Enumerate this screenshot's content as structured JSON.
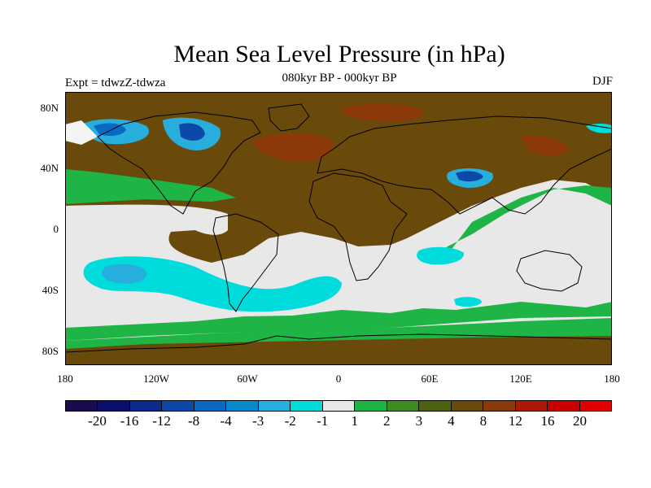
{
  "title": "Mean Sea Level Pressure (in hPa)",
  "subtitle": "080kyr BP - 000kyr BP",
  "experiment": "Expt = tdwzZ-tdwza",
  "season": "DJF",
  "chart_data": {
    "type": "heatmap",
    "projection": "equirectangular",
    "lon_range": [
      -180,
      180
    ],
    "lat_range": [
      -90,
      90
    ],
    "y_ticks": [
      "80N",
      "40N",
      "0",
      "40S",
      "80S"
    ],
    "y_tick_values": [
      80,
      40,
      0,
      -40,
      -80
    ],
    "x_ticks": [
      "180",
      "120W",
      "60W",
      "0",
      "60E",
      "120E",
      "180"
    ],
    "x_tick_values": [
      -180,
      -120,
      -60,
      0,
      60,
      120,
      180
    ],
    "colorbar": {
      "labels": [
        "-20",
        "-16",
        "-12",
        "-8",
        "-4",
        "-3",
        "-2",
        "-1",
        "1",
        "2",
        "3",
        "4",
        "8",
        "12",
        "16",
        "20"
      ],
      "colors": [
        "#1a0a50",
        "#0c0e6e",
        "#0b2a8c",
        "#0c48a8",
        "#0a6ac2",
        "#0b88cc",
        "#28aedc",
        "#00dcdc",
        "#e8e8e8",
        "#1eb446",
        "#3c8c1e",
        "#4c6410",
        "#6a4a0a",
        "#8c3a0a",
        "#aa1a06",
        "#c80000",
        "#e00000"
      ]
    }
  }
}
